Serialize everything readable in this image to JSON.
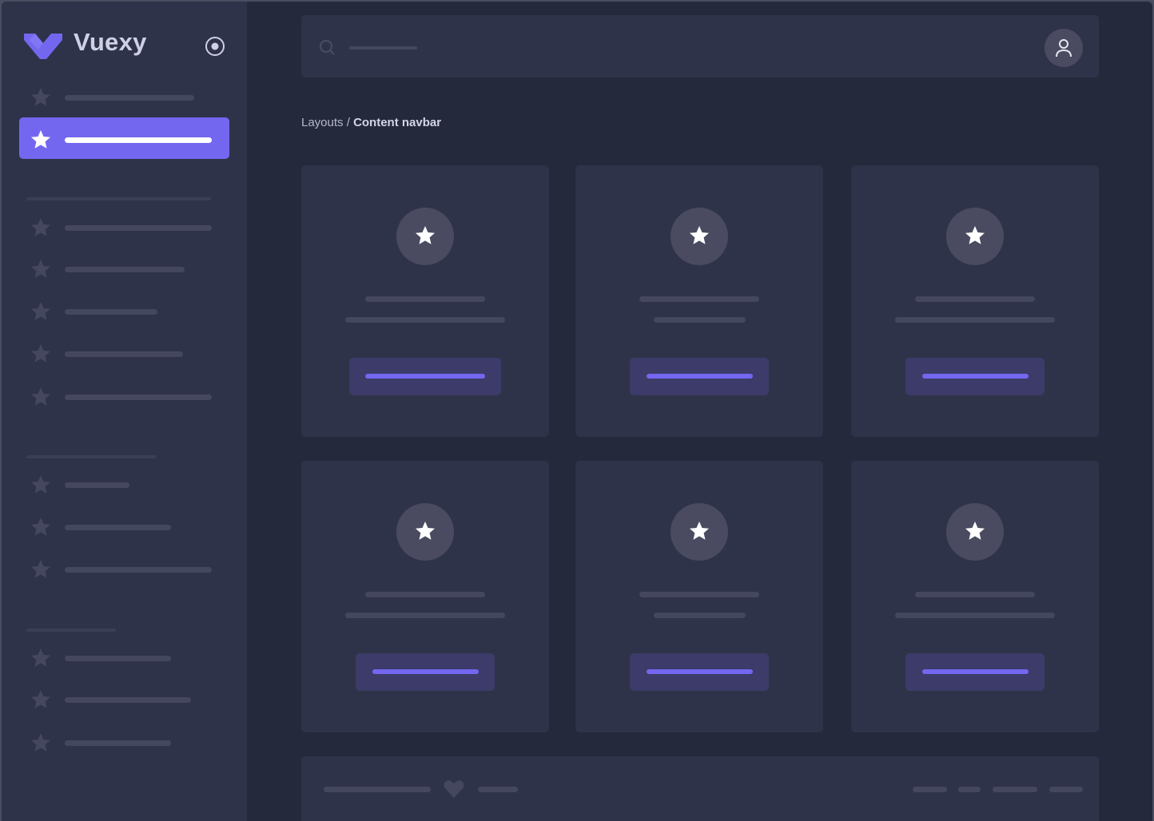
{
  "app": {
    "name": "Vuexy",
    "brand_color": "#7367f0"
  },
  "sidebar": {
    "toggle_icon": "radio-circle-icon",
    "item_icon": "star-icon",
    "sections": [
      {
        "items": 2,
        "active_index": 1
      },
      {
        "items": 5
      },
      {
        "items": 3
      },
      {
        "items": 3
      }
    ]
  },
  "navbar": {
    "search_icon": "search-icon",
    "avatar_icon": "user-icon"
  },
  "breadcrumb": {
    "parent": "Layouts",
    "separator": " / ",
    "current": "Content navbar"
  },
  "cards": {
    "count": 6,
    "icon": "star-icon"
  },
  "footer": {
    "icon": "heart-icon"
  },
  "colors": {
    "background": "#25293c",
    "surface": "#2f3349",
    "accent": "#7367f0",
    "skeleton": "#44475d"
  }
}
